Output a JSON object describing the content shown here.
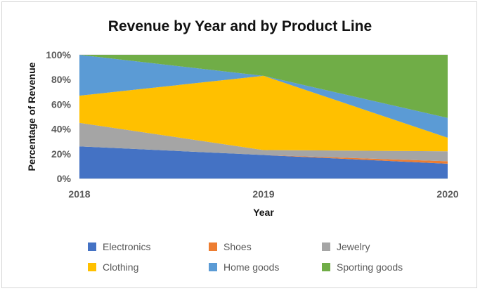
{
  "chart_data": {
    "type": "area",
    "stacked": true,
    "normalized": true,
    "title": "Revenue by Year and by Product Line",
    "xlabel": "Year",
    "ylabel": "Percentage of Revenue",
    "x": [
      "2018",
      "2019",
      "2020"
    ],
    "ylim": [
      0,
      100
    ],
    "y_ticks": [
      "0%",
      "20%",
      "40%",
      "60%",
      "80%",
      "100%"
    ],
    "series": [
      {
        "name": "Electronics",
        "color": "#4472C4",
        "values": [
          26,
          19,
          12
        ]
      },
      {
        "name": "Shoes",
        "color": "#ED7D31",
        "values": [
          0,
          0,
          2
        ]
      },
      {
        "name": "Jewelry",
        "color": "#A5A5A5",
        "values": [
          19,
          4,
          8
        ]
      },
      {
        "name": "Clothing",
        "color": "#FFC000",
        "values": [
          22,
          60,
          11
        ]
      },
      {
        "name": "Home goods",
        "color": "#5B9BD5",
        "values": [
          33,
          0,
          16
        ]
      },
      {
        "name": "Sporting goods",
        "color": "#70AD47",
        "values": [
          0,
          17,
          51
        ]
      }
    ],
    "legend_position": "bottom"
  }
}
